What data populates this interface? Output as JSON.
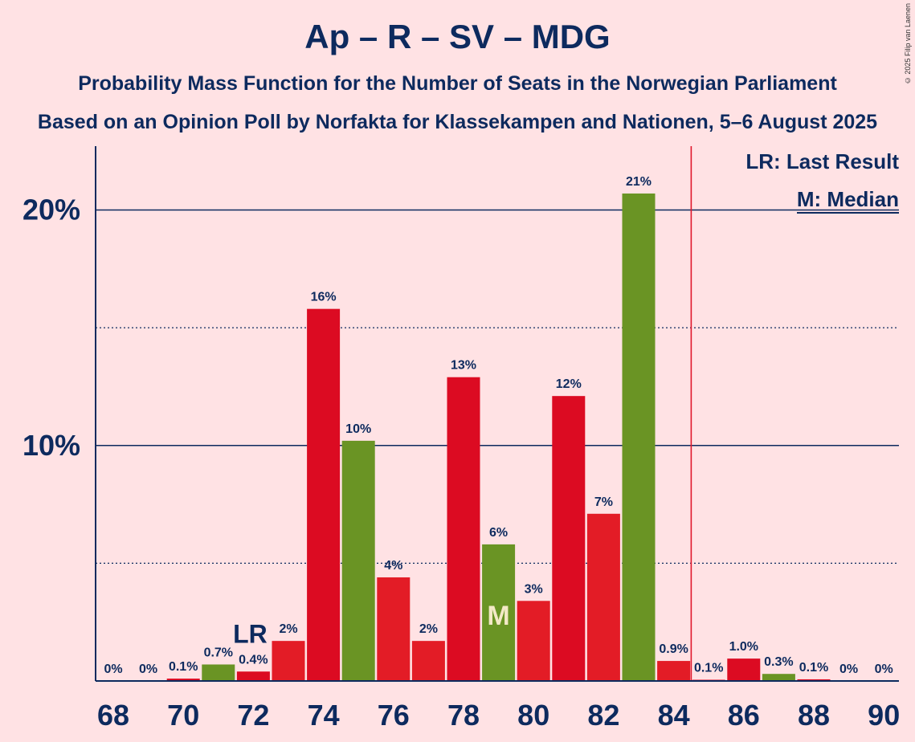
{
  "chart_data": {
    "type": "bar",
    "title": "Ap – R – SV – MDG",
    "subtitle": "Probability Mass Function for the Number of Seats in the Norwegian Parliament",
    "subtitle2": "Based on an Opinion Poll by Norfakta for Klassekampen and Nationen, 5–6 August 2025",
    "copyright": "© 2025 Filip van Laenen",
    "legend": {
      "lr": "LR: Last Result",
      "m": "M: Median"
    },
    "ylim": [
      0,
      22.7
    ],
    "y_ticks": [
      {
        "value": 10,
        "label": "10%"
      },
      {
        "value": 20,
        "label": "20%"
      }
    ],
    "dotted_lines": [
      5,
      15
    ],
    "x_ticks": [
      68,
      70,
      72,
      74,
      76,
      78,
      80,
      82,
      84,
      86,
      88,
      90
    ],
    "majority_threshold": 84.5,
    "last_result_seat": 72,
    "last_result_label": "LR",
    "median_seat": 79,
    "median_label": "M",
    "colors": {
      "red": "#dc0b22",
      "red_alt": "#e31c26",
      "green": "#6a9424",
      "threshold": "#e0182b",
      "axis": "#0d2a5e"
    },
    "bars": [
      {
        "seats": 68,
        "value": 0,
        "label": "0%",
        "color": "red"
      },
      {
        "seats": 69,
        "value": 0,
        "label": "0%",
        "color": "red_alt"
      },
      {
        "seats": 70,
        "value": 0.1,
        "label": "0.1%",
        "color": "red"
      },
      {
        "seats": 71,
        "value": 0.7,
        "label": "0.7%",
        "color": "green"
      },
      {
        "seats": 72,
        "value": 0.4,
        "label": "0.4%",
        "color": "red"
      },
      {
        "seats": 73,
        "value": 1.7,
        "label": "2%",
        "color": "red_alt"
      },
      {
        "seats": 74,
        "value": 15.8,
        "label": "16%",
        "color": "red"
      },
      {
        "seats": 75,
        "value": 10.2,
        "label": "10%",
        "color": "green"
      },
      {
        "seats": 76,
        "value": 4.4,
        "label": "4%",
        "color": "red_alt"
      },
      {
        "seats": 77,
        "value": 1.7,
        "label": "2%",
        "color": "red_alt"
      },
      {
        "seats": 78,
        "value": 12.9,
        "label": "13%",
        "color": "red"
      },
      {
        "seats": 79,
        "value": 5.8,
        "label": "6%",
        "color": "green"
      },
      {
        "seats": 80,
        "value": 3.4,
        "label": "3%",
        "color": "red_alt"
      },
      {
        "seats": 81,
        "value": 12.1,
        "label": "12%",
        "color": "red"
      },
      {
        "seats": 82,
        "value": 7.1,
        "label": "7%",
        "color": "red_alt"
      },
      {
        "seats": 83,
        "value": 20.7,
        "label": "21%",
        "color": "green"
      },
      {
        "seats": 84,
        "value": 0.85,
        "label": "0.9%",
        "color": "red_alt"
      },
      {
        "seats": 85,
        "value": 0.05,
        "label": "0.1%",
        "color": "red"
      },
      {
        "seats": 86,
        "value": 0.95,
        "label": "1.0%",
        "color": "red"
      },
      {
        "seats": 87,
        "value": 0.3,
        "label": "0.3%",
        "color": "green"
      },
      {
        "seats": 88,
        "value": 0.07,
        "label": "0.1%",
        "color": "red"
      },
      {
        "seats": 89,
        "value": 0,
        "label": "0%",
        "color": "red_alt"
      },
      {
        "seats": 90,
        "value": 0,
        "label": "0%",
        "color": "red"
      }
    ]
  }
}
